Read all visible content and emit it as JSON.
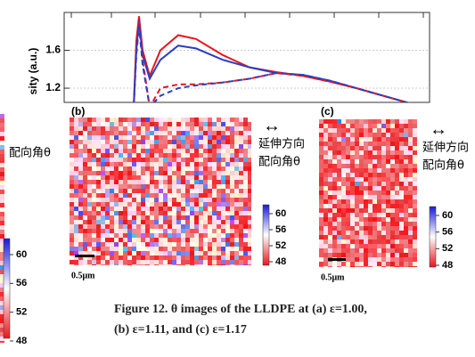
{
  "chart_data": {
    "type": "line",
    "y_label": "sity (a.u.)",
    "ylim": [
      1.05,
      2.0
    ],
    "yticks": [
      1.6,
      1.2
    ],
    "series": [
      {
        "color": "#e8151b",
        "dashed": false,
        "values": [
          1.0,
          1.7,
          1.96,
          1.6,
          1.33,
          1.6,
          1.76,
          1.72,
          1.55,
          1.42,
          1.37,
          1.33,
          1.27,
          1.2,
          1.12,
          1.04,
          0.98
        ]
      },
      {
        "color": "#2b3fc4",
        "dashed": false,
        "values": [
          1.0,
          1.6,
          1.92,
          1.55,
          1.3,
          1.5,
          1.65,
          1.62,
          1.5,
          1.42,
          1.36,
          1.34,
          1.28,
          1.2,
          1.12,
          1.04,
          0.98
        ]
      },
      {
        "color": "#e8151b",
        "dashed": true,
        "values": [
          1.0,
          1.6,
          1.9,
          1.5,
          1.0,
          1.2,
          1.24,
          1.24,
          1.26,
          1.3,
          1.36,
          1.33,
          1.27,
          1.2,
          1.12,
          1.04,
          0.98
        ]
      },
      {
        "color": "#2b3fc4",
        "dashed": true,
        "values": [
          1.0,
          1.55,
          1.86,
          1.45,
          1.0,
          1.12,
          1.2,
          1.23,
          1.26,
          1.3,
          1.36,
          1.34,
          1.28,
          1.2,
          1.12,
          1.04,
          0.98
        ]
      }
    ]
  },
  "panels": [
    {
      "angle": "配向角θ",
      "colorbar_ticks": [
        60,
        56,
        52,
        48
      ]
    },
    {
      "label": "(b)",
      "arrow": "↔",
      "direction": "延伸方向",
      "angle": "配向角θ",
      "scale": "0.5μm",
      "colorbar_ticks": [
        60,
        56,
        52,
        48
      ]
    },
    {
      "label": "(c)",
      "arrow": "↔",
      "direction": "延伸方向",
      "angle": "配向角θ",
      "scale": "0.5μm",
      "colorbar_ticks": [
        60,
        56,
        52,
        48
      ]
    }
  ],
  "caption": [
    "Figure 12. θ images of the LLDPE at (a) ε=1.00,",
    "(b) ε=1.11, and (c) ε=1.17"
  ]
}
